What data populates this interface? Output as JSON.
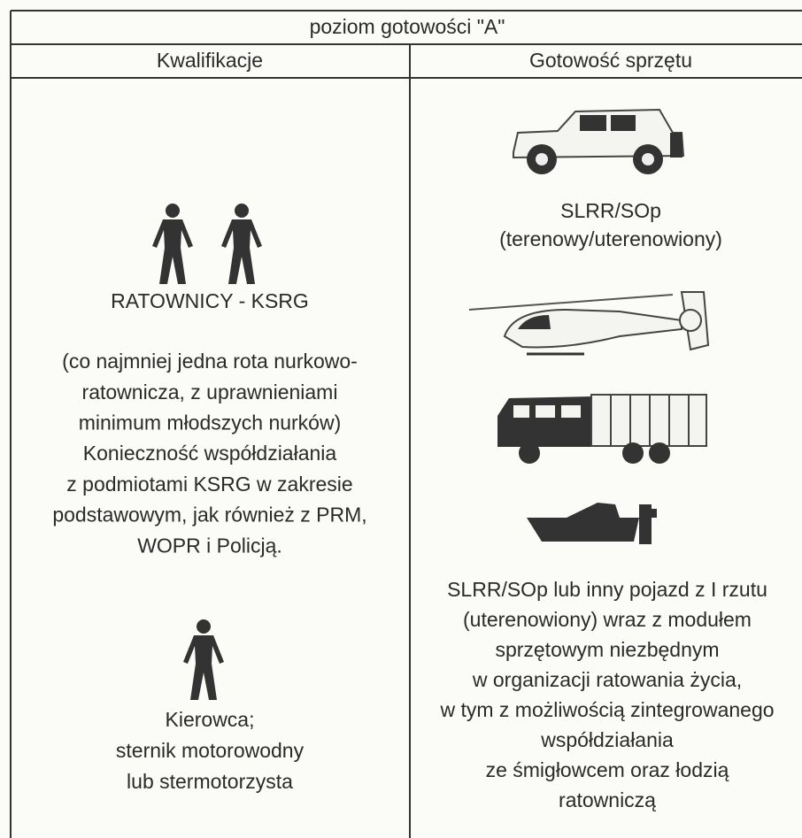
{
  "header": {
    "title": "poziom gotowości \"A\""
  },
  "columns": [
    "Kwalifikacje",
    "Gotowość sprzętu"
  ],
  "left": {
    "group_label": "RATOWNICY - KSRG",
    "description": [
      "(co najmniej jedna rota nurkowo-",
      "ratownicza, z uprawnieniami",
      "minimum młodszych nurków)",
      "Konieczność współdziałania",
      "z podmiotami KSRG w zakresie",
      "podstawowym, jak również z PRM,",
      "WOPR i Policją."
    ],
    "driver": [
      "Kierowca;",
      "sternik motorowodny",
      "lub stermotorzysta"
    ]
  },
  "right": {
    "vehicle_label": [
      "SLRR/SOp",
      "(terenowy/uterenowiony)"
    ],
    "description": [
      "SLRR/SOp lub inny pojazd z I rzutu",
      "(uterenowiony) wraz z modułem",
      "sprzętowym niezbędnym",
      "w organizacji ratowania życia,",
      "w tym z możliwością zintegrowanego",
      "współdziałania",
      "ze śmigłowcem oraz łodzią",
      "ratowniczą"
    ]
  }
}
